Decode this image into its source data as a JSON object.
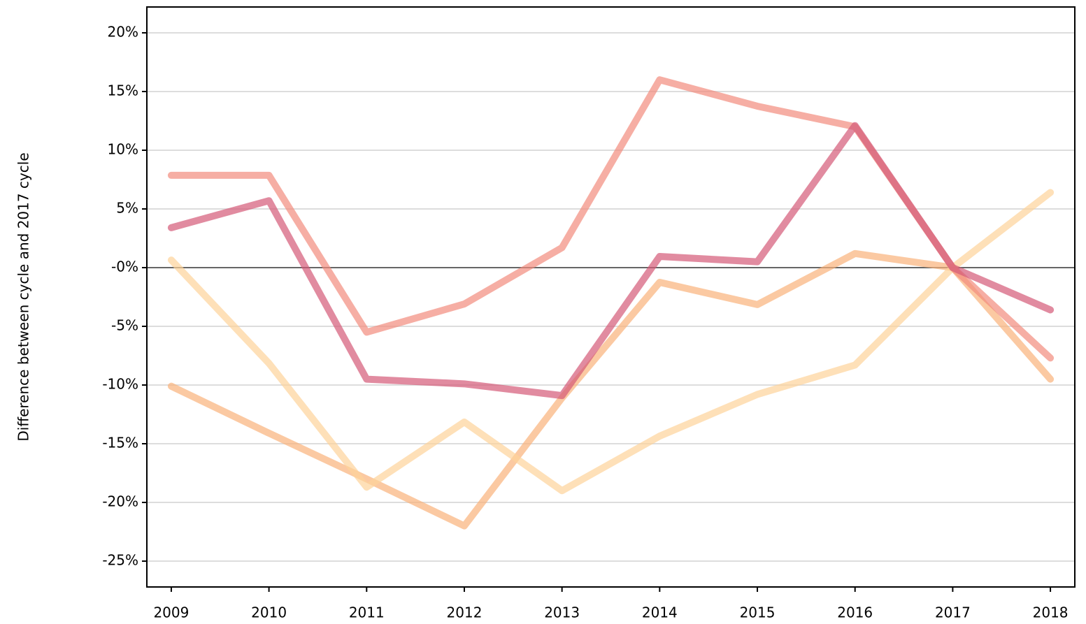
{
  "chart_data": {
    "type": "line",
    "y_label": "Difference between cycle and 2017 cycle",
    "x": [
      2009,
      2010,
      2011,
      2012,
      2013,
      2014,
      2015,
      2016,
      2017,
      2018
    ],
    "xlim": [
      2008.75,
      2018.25
    ],
    "xticks": [
      2009,
      2010,
      2011,
      2012,
      2013,
      2014,
      2015,
      2016,
      2017,
      2018
    ],
    "ylim": [
      -27.2,
      22.2
    ],
    "yticks": [
      {
        "value": -25,
        "label": "-25%"
      },
      {
        "value": -20,
        "label": "-20%"
      },
      {
        "value": -15,
        "label": "-15%"
      },
      {
        "value": -10,
        "label": "-10%"
      },
      {
        "value": -5,
        "label": "-5%"
      },
      {
        "value": 0,
        "label": "-0%"
      },
      {
        "value": 5,
        "label": "5%"
      },
      {
        "value": 10,
        "label": "10%"
      },
      {
        "value": 15,
        "label": "15%"
      },
      {
        "value": 20,
        "label": "20%"
      }
    ],
    "grid": true,
    "series": [
      {
        "color": "#f9b27a",
        "values": [
          -10.1,
          -14.1,
          -18.0,
          -22.0,
          -11.1,
          -1.25,
          -3.15,
          1.2,
          0,
          -9.5
        ]
      },
      {
        "color": "#fdd39a",
        "values": [
          0.65,
          -8.15,
          -18.7,
          -13.15,
          -19.0,
          -14.35,
          -10.8,
          -8.3,
          0,
          6.4
        ]
      },
      {
        "color": "#f28b7e",
        "values": [
          7.86,
          7.86,
          -5.5,
          -3.1,
          1.7,
          16.0,
          13.75,
          12.0,
          0,
          -7.7
        ]
      },
      {
        "color": "#d45a78",
        "values": [
          3.4,
          5.7,
          -9.5,
          -9.9,
          -10.9,
          0.95,
          0.5,
          12.1,
          0,
          -3.6
        ]
      }
    ]
  }
}
